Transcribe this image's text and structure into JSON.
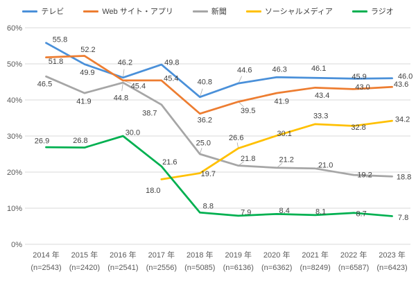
{
  "chart_data": {
    "type": "line",
    "title": "",
    "categories": [
      "2014 年",
      "2015 年",
      "2016 年",
      "2017 年",
      "2018 年",
      "2019 年",
      "2020 年",
      "2021 年",
      "2022 年",
      "2023 年"
    ],
    "sample_sizes": [
      "(n=2543)",
      "(n=2420)",
      "(n=2541)",
      "(n=2556)",
      "(n=5085)",
      "(n=6136)",
      "(n=6362)",
      "(n=8249)",
      "(n=6587)",
      "(n=6423)"
    ],
    "xlabel": "",
    "ylabel": "",
    "ylim": [
      0,
      60
    ],
    "yticks": [
      0,
      10,
      20,
      30,
      40,
      50,
      60
    ],
    "ytick_suffix": "%",
    "grid": true,
    "legend_position": "top",
    "colors": {
      "grid": "#D9D9D9",
      "axis_text": "#595959",
      "data_label_text": "#404040",
      "leader_line": "#A6A6A6"
    },
    "series": [
      {
        "name": "テレビ",
        "color": "#4A90D9",
        "values": [
          55.8,
          49.9,
          46.2,
          49.8,
          40.8,
          44.6,
          46.3,
          46.1,
          45.9,
          46.0
        ]
      },
      {
        "name": "Web サイト・アプリ",
        "color": "#ED7D31",
        "values": [
          51.8,
          52.2,
          45.4,
          45.4,
          36.2,
          39.5,
          41.9,
          43.4,
          43.0,
          43.6
        ]
      },
      {
        "name": "新聞",
        "color": "#A6A6A6",
        "values": [
          46.5,
          41.9,
          44.8,
          38.7,
          25.0,
          21.8,
          21.2,
          21.0,
          19.2,
          18.8
        ]
      },
      {
        "name": "ソーシャルメディア",
        "color": "#FFC000",
        "values": [
          null,
          null,
          null,
          18.0,
          19.7,
          26.6,
          30.1,
          33.3,
          32.8,
          34.2
        ]
      },
      {
        "name": "ラジオ",
        "color": "#00B050",
        "values": [
          26.9,
          26.8,
          30.0,
          21.6,
          8.8,
          7.9,
          8.4,
          8.1,
          8.7,
          7.8
        ]
      }
    ]
  }
}
